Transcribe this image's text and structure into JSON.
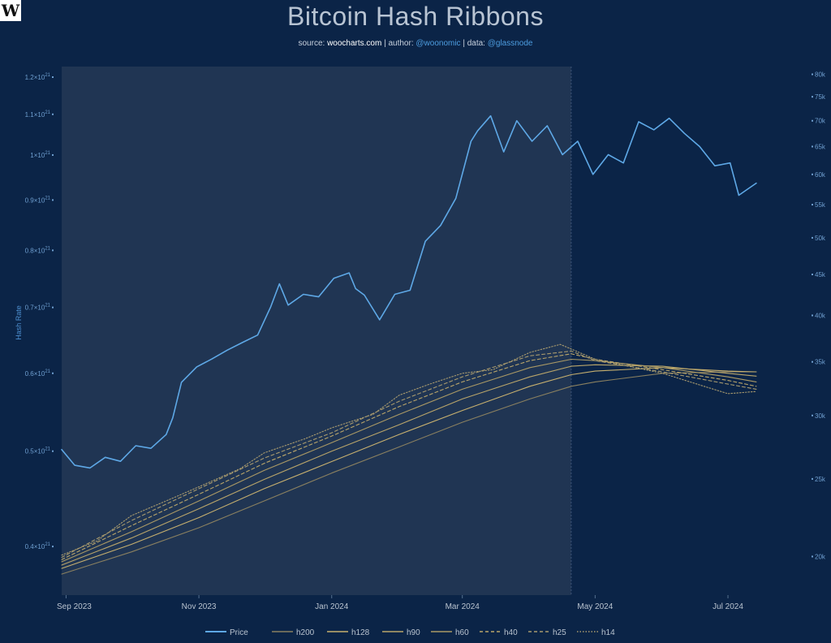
{
  "logo_letter": "W",
  "title": "Bitcoin Hash Ribbons",
  "subtitle": {
    "source_label": "source:",
    "source": "woocharts.com",
    "author_label": "| author:",
    "author": "@woonomic",
    "data_label": "| data:",
    "data_source": "@glassnode"
  },
  "colors": {
    "background": "#0b2447",
    "shaded_region": "#203553",
    "price": "#5ea8e6",
    "ribbons": "#c7b06f",
    "axis_text": "#6f9fd0"
  },
  "chart_data": {
    "type": "line",
    "title": "Bitcoin Hash Ribbons",
    "x_range": [
      "2023-08-27",
      "2024-07-20"
    ],
    "x_ticks": [
      {
        "date": "2023-09-01",
        "label": "Sep 2023"
      },
      {
        "date": "2023-11-01",
        "label": "Nov 2023"
      },
      {
        "date": "2024-01-01",
        "label": "Jan 2024"
      },
      {
        "date": "2024-03-01",
        "label": "Mar 2024"
      },
      {
        "date": "2024-05-01",
        "label": "May 2024"
      },
      {
        "date": "2024-07-01",
        "label": "Jul 2024"
      }
    ],
    "shaded_region": {
      "start": "2023-08-30",
      "end": "2024-04-20"
    },
    "y_left": {
      "label": "Hash Rate",
      "scale": "log",
      "exponent": "21",
      "range": [
        3.57,
        12.3
      ],
      "ticks": [
        {
          "value": 4.0,
          "label": "0.4×10"
        },
        {
          "value": 5.0,
          "label": "0.5×10"
        },
        {
          "value": 6.0,
          "label": "0.6×10"
        },
        {
          "value": 7.0,
          "label": "0.7×10"
        },
        {
          "value": 8.0,
          "label": "0.8×10"
        },
        {
          "value": 9.0,
          "label": "0.9×10"
        },
        {
          "value": 10.0,
          "label": "1×10"
        },
        {
          "value": 11.0,
          "label": "1.1×10"
        },
        {
          "value": 12.0,
          "label": "1.2×10"
        }
      ]
    },
    "y_right": {
      "label": "Price",
      "scale": "log",
      "range": [
        17900,
        81800
      ],
      "ticks": [
        {
          "value": 20000,
          "label": "20k"
        },
        {
          "value": 25000,
          "label": "25k"
        },
        {
          "value": 30000,
          "label": "30k"
        },
        {
          "value": 35000,
          "label": "35k"
        },
        {
          "value": 40000,
          "label": "40k"
        },
        {
          "value": 45000,
          "label": "45k"
        },
        {
          "value": 50000,
          "label": "50k"
        },
        {
          "value": 55000,
          "label": "55k"
        },
        {
          "value": 60000,
          "label": "60k"
        },
        {
          "value": 65000,
          "label": "65k"
        },
        {
          "value": 70000,
          "label": "70k"
        },
        {
          "value": 75000,
          "label": "75k"
        },
        {
          "value": 80000,
          "label": "80k"
        }
      ]
    },
    "legend": [
      {
        "name": "Price",
        "style": "solid",
        "color": "#5ea8e6"
      },
      {
        "name": "h200",
        "style": "solid",
        "color": "#8a8060"
      },
      {
        "name": "h128",
        "style": "solid",
        "color": "#c7b06f"
      },
      {
        "name": "h90",
        "style": "solid",
        "color": "#b9a56a"
      },
      {
        "name": "h60",
        "style": "solid",
        "color": "#aa9965"
      },
      {
        "name": "h40",
        "style": "dashed",
        "color": "#b9a56a"
      },
      {
        "name": "h25",
        "style": "dashed",
        "color": "#a89a6e"
      },
      {
        "name": "h14",
        "style": "dotted",
        "color": "#a89a6e"
      }
    ],
    "series": [
      {
        "name": "Price",
        "axis": "right",
        "dates": [
          "2023-08-30",
          "2023-09-05",
          "2023-09-12",
          "2023-09-19",
          "2023-09-26",
          "2023-10-03",
          "2023-10-10",
          "2023-10-17",
          "2023-10-20",
          "2023-10-24",
          "2023-10-31",
          "2023-11-07",
          "2023-11-14",
          "2023-11-21",
          "2023-11-28",
          "2023-12-04",
          "2023-12-08",
          "2023-12-12",
          "2023-12-19",
          "2023-12-26",
          "2024-01-02",
          "2024-01-09",
          "2024-01-12",
          "2024-01-16",
          "2024-01-23",
          "2024-01-30",
          "2024-02-06",
          "2024-02-13",
          "2024-02-20",
          "2024-02-27",
          "2024-03-05",
          "2024-03-08",
          "2024-03-14",
          "2024-03-20",
          "2024-03-26",
          "2024-04-02",
          "2024-04-09",
          "2024-04-16",
          "2024-04-23",
          "2024-04-30",
          "2024-05-07",
          "2024-05-14",
          "2024-05-21",
          "2024-05-28",
          "2024-06-04",
          "2024-06-11",
          "2024-06-18",
          "2024-06-25",
          "2024-07-02",
          "2024-07-06",
          "2024-07-10",
          "2024-07-14"
        ],
        "values": [
          27200,
          26000,
          25800,
          26600,
          26300,
          27500,
          27300,
          28400,
          29800,
          33000,
          34500,
          35300,
          36200,
          37000,
          37800,
          41000,
          43800,
          41200,
          42500,
          42200,
          44500,
          45200,
          43200,
          42400,
          39500,
          42500,
          43000,
          49500,
          51800,
          56000,
          66000,
          68000,
          71000,
          64000,
          70000,
          66000,
          69000,
          63500,
          66000,
          60000,
          63500,
          62000,
          69800,
          68200,
          70500,
          67500,
          65000,
          61500,
          62000,
          56500,
          57500,
          58500
        ]
      },
      {
        "name": "h200",
        "axis": "left",
        "dates": [
          "2023-08-30",
          "2023-10-01",
          "2023-11-01",
          "2023-12-01",
          "2024-01-01",
          "2024-02-01",
          "2024-03-01",
          "2024-04-01",
          "2024-04-20",
          "2024-05-01",
          "2024-06-01",
          "2024-07-01",
          "2024-07-14"
        ],
        "values": [
          3.75,
          3.95,
          4.18,
          4.45,
          4.75,
          5.05,
          5.35,
          5.65,
          5.82,
          5.88,
          6.0,
          6.02,
          6.02
        ]
      },
      {
        "name": "h128",
        "axis": "left",
        "dates": [
          "2023-08-30",
          "2023-10-01",
          "2023-11-01",
          "2023-12-01",
          "2024-01-01",
          "2024-02-01",
          "2024-03-01",
          "2024-04-01",
          "2024-04-20",
          "2024-05-01",
          "2024-06-01",
          "2024-07-01",
          "2024-07-14"
        ],
        "values": [
          3.8,
          4.02,
          4.28,
          4.58,
          4.88,
          5.2,
          5.5,
          5.82,
          5.98,
          6.03,
          6.08,
          6.03,
          6.02
        ]
      },
      {
        "name": "h90",
        "axis": "left",
        "dates": [
          "2023-08-30",
          "2023-10-01",
          "2023-11-01",
          "2023-12-01",
          "2024-01-01",
          "2024-02-01",
          "2024-03-01",
          "2024-04-01",
          "2024-04-20",
          "2024-05-01",
          "2024-06-01",
          "2024-07-01",
          "2024-07-14"
        ],
        "values": [
          3.83,
          4.08,
          4.37,
          4.68,
          5.0,
          5.32,
          5.65,
          5.95,
          6.1,
          6.12,
          6.1,
          6.0,
          5.96
        ]
      },
      {
        "name": "h60",
        "axis": "left",
        "dates": [
          "2023-08-30",
          "2023-10-01",
          "2023-11-01",
          "2023-12-01",
          "2024-01-01",
          "2024-02-01",
          "2024-03-01",
          "2024-04-01",
          "2024-04-20",
          "2024-05-01",
          "2024-06-01",
          "2024-07-01",
          "2024-07-14"
        ],
        "values": [
          3.86,
          4.14,
          4.45,
          4.78,
          5.1,
          5.45,
          5.78,
          6.08,
          6.2,
          6.18,
          6.08,
          5.95,
          5.88
        ]
      },
      {
        "name": "h40",
        "axis": "left",
        "dates": [
          "2023-08-30",
          "2023-10-01",
          "2023-11-01",
          "2023-12-01",
          "2024-01-01",
          "2024-02-01",
          "2024-03-01",
          "2024-04-01",
          "2024-04-20",
          "2024-05-01",
          "2024-06-01",
          "2024-07-01",
          "2024-07-14"
        ],
        "values": [
          3.88,
          4.2,
          4.52,
          4.86,
          5.18,
          5.55,
          5.88,
          6.18,
          6.28,
          6.2,
          6.05,
          5.9,
          5.82
        ]
      },
      {
        "name": "h25",
        "axis": "left",
        "dates": [
          "2023-08-30",
          "2023-10-01",
          "2023-11-01",
          "2023-12-01",
          "2024-01-01",
          "2024-02-01",
          "2024-03-01",
          "2024-04-01",
          "2024-04-20",
          "2024-05-01",
          "2024-06-01",
          "2024-07-01",
          "2024-07-14"
        ],
        "values": [
          3.9,
          4.25,
          4.58,
          4.92,
          5.22,
          5.62,
          5.95,
          6.25,
          6.32,
          6.18,
          6.02,
          5.85,
          5.78
        ]
      },
      {
        "name": "h14",
        "axis": "left",
        "dates": [
          "2023-08-30",
          "2023-09-15",
          "2023-10-01",
          "2023-10-20",
          "2023-11-01",
          "2023-11-20",
          "2023-12-01",
          "2023-12-20",
          "2024-01-01",
          "2024-01-20",
          "2024-02-01",
          "2024-02-15",
          "2024-03-01",
          "2024-03-15",
          "2024-04-01",
          "2024-04-15",
          "2024-04-20",
          "2024-05-01",
          "2024-06-01",
          "2024-06-20",
          "2024-07-01",
          "2024-07-14"
        ],
        "values": [
          3.92,
          4.05,
          4.3,
          4.48,
          4.6,
          4.8,
          4.98,
          5.15,
          5.28,
          5.45,
          5.7,
          5.85,
          6.0,
          6.05,
          6.3,
          6.42,
          6.35,
          6.2,
          6.0,
          5.82,
          5.72,
          5.75
        ]
      }
    ]
  }
}
